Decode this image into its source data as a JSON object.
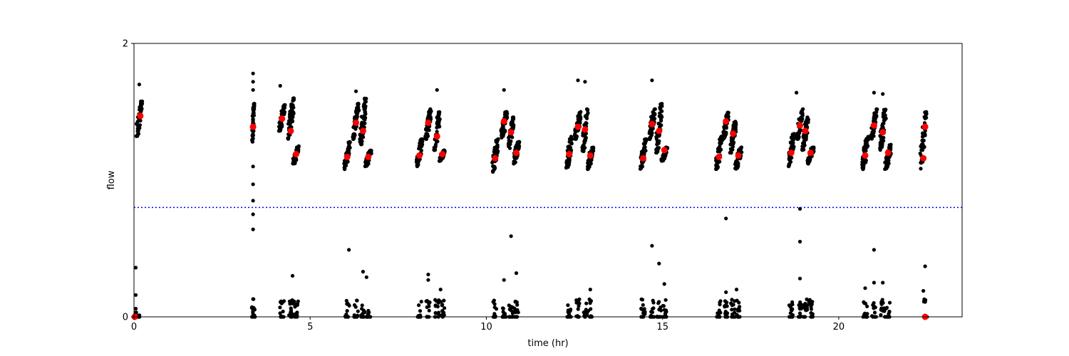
{
  "chart_data": {
    "type": "scatter",
    "xlabel": "time (hr)",
    "ylabel": "flow",
    "xlim": [
      0,
      23.5
    ],
    "ylim": [
      0,
      2
    ],
    "x_ticks": [
      0,
      5,
      10,
      15,
      20
    ],
    "y_ticks": [
      0,
      2
    ],
    "grid": false,
    "threshold_line": {
      "y": 0.8,
      "color": "#0000ff",
      "style": "dotted"
    },
    "colors": {
      "points": "#000000",
      "highlights": "#ff0000",
      "axes": "#000000"
    },
    "clusters": [
      {
        "center": 0.15,
        "width": 0.16,
        "y_low": 1.32,
        "y_high": 1.58
      },
      {
        "center": 3.38,
        "width": 0.06,
        "y_low": 1.28,
        "y_high": 1.56
      },
      {
        "center": 4.2,
        "width": 0.16,
        "y_low": 1.36,
        "y_high": 1.55
      },
      {
        "center": 4.45,
        "width": 0.16,
        "y_low": 1.3,
        "y_high": 1.6
      },
      {
        "center": 4.6,
        "width": 0.16,
        "y_low": 1.12,
        "y_high": 1.25
      },
      {
        "center": 6.05,
        "width": 0.16,
        "y_low": 1.08,
        "y_high": 1.28
      },
      {
        "center": 6.3,
        "width": 0.16,
        "y_low": 1.3,
        "y_high": 1.56
      },
      {
        "center": 6.5,
        "width": 0.16,
        "y_low": 1.26,
        "y_high": 1.6
      },
      {
        "center": 6.65,
        "width": 0.16,
        "y_low": 1.1,
        "y_high": 1.22
      },
      {
        "center": 8.1,
        "width": 0.16,
        "y_low": 1.1,
        "y_high": 1.3
      },
      {
        "center": 8.35,
        "width": 0.16,
        "y_low": 1.3,
        "y_high": 1.52
      },
      {
        "center": 8.6,
        "width": 0.16,
        "y_low": 1.22,
        "y_high": 1.5
      },
      {
        "center": 8.75,
        "width": 0.16,
        "y_low": 1.14,
        "y_high": 1.22
      },
      {
        "center": 10.25,
        "width": 0.16,
        "y_low": 1.06,
        "y_high": 1.3
      },
      {
        "center": 10.5,
        "width": 0.16,
        "y_low": 1.3,
        "y_high": 1.5
      },
      {
        "center": 10.7,
        "width": 0.16,
        "y_low": 1.22,
        "y_high": 1.46
      },
      {
        "center": 10.85,
        "width": 0.16,
        "y_low": 1.12,
        "y_high": 1.28
      },
      {
        "center": 12.35,
        "width": 0.16,
        "y_low": 1.08,
        "y_high": 1.32
      },
      {
        "center": 12.6,
        "width": 0.16,
        "y_low": 1.3,
        "y_high": 1.5
      },
      {
        "center": 12.8,
        "width": 0.16,
        "y_low": 1.2,
        "y_high": 1.52
      },
      {
        "center": 12.95,
        "width": 0.16,
        "y_low": 1.08,
        "y_high": 1.24
      },
      {
        "center": 14.45,
        "width": 0.16,
        "y_low": 1.08,
        "y_high": 1.3
      },
      {
        "center": 14.7,
        "width": 0.16,
        "y_low": 1.3,
        "y_high": 1.52
      },
      {
        "center": 14.9,
        "width": 0.16,
        "y_low": 1.2,
        "y_high": 1.56
      },
      {
        "center": 15.05,
        "width": 0.16,
        "y_low": 1.14,
        "y_high": 1.24
      },
      {
        "center": 16.6,
        "width": 0.16,
        "y_low": 1.08,
        "y_high": 1.32
      },
      {
        "center": 16.8,
        "width": 0.16,
        "y_low": 1.3,
        "y_high": 1.5
      },
      {
        "center": 17.0,
        "width": 0.16,
        "y_low": 1.2,
        "y_high": 1.44
      },
      {
        "center": 17.15,
        "width": 0.16,
        "y_low": 1.08,
        "y_high": 1.24
      },
      {
        "center": 18.65,
        "width": 0.16,
        "y_low": 1.1,
        "y_high": 1.34
      },
      {
        "center": 18.9,
        "width": 0.16,
        "y_low": 1.3,
        "y_high": 1.52
      },
      {
        "center": 19.05,
        "width": 0.16,
        "y_low": 1.22,
        "y_high": 1.46
      },
      {
        "center": 19.2,
        "width": 0.16,
        "y_low": 1.12,
        "y_high": 1.24
      },
      {
        "center": 20.75,
        "width": 0.16,
        "y_low": 1.08,
        "y_high": 1.32
      },
      {
        "center": 21.0,
        "width": 0.16,
        "y_low": 1.3,
        "y_high": 1.52
      },
      {
        "center": 21.25,
        "width": 0.16,
        "y_low": 1.22,
        "y_high": 1.52
      },
      {
        "center": 21.4,
        "width": 0.16,
        "y_low": 1.08,
        "y_high": 1.26
      },
      {
        "center": 22.4,
        "width": 0.16,
        "y_low": 1.08,
        "y_high": 1.5
      }
    ],
    "low_clusters": [
      0.1,
      3.38,
      4.2,
      4.45,
      4.6,
      6.05,
      6.3,
      6.5,
      6.65,
      8.1,
      8.35,
      8.6,
      8.75,
      10.25,
      10.5,
      10.7,
      10.85,
      12.35,
      12.6,
      12.8,
      12.95,
      14.45,
      14.7,
      14.9,
      15.05,
      16.6,
      16.8,
      17.0,
      17.15,
      18.65,
      18.9,
      19.05,
      19.2,
      20.75,
      21.0,
      21.25,
      21.4,
      22.45
    ],
    "outliers": [
      {
        "x": 0.15,
        "y": 1.7
      },
      {
        "x": 0.05,
        "y": 0.36
      },
      {
        "x": 0.05,
        "y": 0.16
      },
      {
        "x": 0.05,
        "y": 0.06
      },
      {
        "x": 3.38,
        "y": 1.78
      },
      {
        "x": 3.38,
        "y": 1.72
      },
      {
        "x": 3.38,
        "y": 1.66
      },
      {
        "x": 3.38,
        "y": 1.1
      },
      {
        "x": 3.38,
        "y": 0.97
      },
      {
        "x": 3.38,
        "y": 0.85
      },
      {
        "x": 3.38,
        "y": 0.75
      },
      {
        "x": 3.38,
        "y": 0.64
      },
      {
        "x": 3.38,
        "y": 0.13
      },
      {
        "x": 3.38,
        "y": 0.02
      },
      {
        "x": 4.15,
        "y": 1.69
      },
      {
        "x": 4.5,
        "y": 0.3
      },
      {
        "x": 6.1,
        "y": 0.49
      },
      {
        "x": 6.3,
        "y": 1.65
      },
      {
        "x": 6.5,
        "y": 0.33
      },
      {
        "x": 6.6,
        "y": 0.29
      },
      {
        "x": 8.35,
        "y": 0.31
      },
      {
        "x": 8.35,
        "y": 0.27
      },
      {
        "x": 8.6,
        "y": 1.66
      },
      {
        "x": 8.7,
        "y": 0.2
      },
      {
        "x": 10.5,
        "y": 1.66
      },
      {
        "x": 10.5,
        "y": 0.27
      },
      {
        "x": 10.7,
        "y": 0.59
      },
      {
        "x": 10.85,
        "y": 0.32
      },
      {
        "x": 12.6,
        "y": 1.73
      },
      {
        "x": 12.8,
        "y": 1.72
      },
      {
        "x": 12.95,
        "y": 0.2
      },
      {
        "x": 14.7,
        "y": 1.73
      },
      {
        "x": 14.7,
        "y": 0.52
      },
      {
        "x": 14.9,
        "y": 0.39
      },
      {
        "x": 15.05,
        "y": 0.24
      },
      {
        "x": 16.8,
        "y": 0.72
      },
      {
        "x": 16.8,
        "y": 0.18
      },
      {
        "x": 17.1,
        "y": 0.2
      },
      {
        "x": 18.9,
        "y": 0.79
      },
      {
        "x": 18.9,
        "y": 0.55
      },
      {
        "x": 18.9,
        "y": 0.28
      },
      {
        "x": 18.8,
        "y": 1.64
      },
      {
        "x": 21.0,
        "y": 0.49
      },
      {
        "x": 21.0,
        "y": 1.64
      },
      {
        "x": 21.25,
        "y": 1.63
      },
      {
        "x": 20.75,
        "y": 0.21
      },
      {
        "x": 21.0,
        "y": 0.25
      },
      {
        "x": 21.25,
        "y": 0.25
      },
      {
        "x": 22.45,
        "y": 0.37
      },
      {
        "x": 22.4,
        "y": 0.19
      }
    ],
    "highlights": [
      {
        "x": 0.18,
        "y": 1.47
      },
      {
        "x": 3.38,
        "y": 1.39
      },
      {
        "x": 4.2,
        "y": 1.45
      },
      {
        "x": 4.45,
        "y": 1.36
      },
      {
        "x": 4.6,
        "y": 1.19
      },
      {
        "x": 6.05,
        "y": 1.17
      },
      {
        "x": 6.3,
        "y": 1.42
      },
      {
        "x": 6.5,
        "y": 1.36
      },
      {
        "x": 6.65,
        "y": 1.17
      },
      {
        "x": 8.1,
        "y": 1.18
      },
      {
        "x": 8.35,
        "y": 1.42
      },
      {
        "x": 8.6,
        "y": 1.32
      },
      {
        "x": 8.75,
        "y": 1.19
      },
      {
        "x": 10.25,
        "y": 1.16
      },
      {
        "x": 10.5,
        "y": 1.43
      },
      {
        "x": 10.7,
        "y": 1.35
      },
      {
        "x": 10.85,
        "y": 1.2
      },
      {
        "x": 12.35,
        "y": 1.19
      },
      {
        "x": 12.6,
        "y": 1.39
      },
      {
        "x": 12.8,
        "y": 1.37
      },
      {
        "x": 12.95,
        "y": 1.18
      },
      {
        "x": 14.45,
        "y": 1.16
      },
      {
        "x": 14.7,
        "y": 1.41
      },
      {
        "x": 14.9,
        "y": 1.36
      },
      {
        "x": 15.05,
        "y": 1.22
      },
      {
        "x": 16.6,
        "y": 1.17
      },
      {
        "x": 16.8,
        "y": 1.43
      },
      {
        "x": 17.0,
        "y": 1.34
      },
      {
        "x": 17.15,
        "y": 1.18
      },
      {
        "x": 18.65,
        "y": 1.2
      },
      {
        "x": 18.9,
        "y": 1.4
      },
      {
        "x": 19.05,
        "y": 1.36
      },
      {
        "x": 19.2,
        "y": 1.2
      },
      {
        "x": 20.75,
        "y": 1.18
      },
      {
        "x": 21.0,
        "y": 1.4
      },
      {
        "x": 21.25,
        "y": 1.35
      },
      {
        "x": 21.4,
        "y": 1.2
      },
      {
        "x": 22.4,
        "y": 1.16
      },
      {
        "x": 22.45,
        "y": 1.39
      },
      {
        "x": 0.02,
        "y": 0.0
      },
      {
        "x": 22.45,
        "y": 0.0
      }
    ]
  }
}
